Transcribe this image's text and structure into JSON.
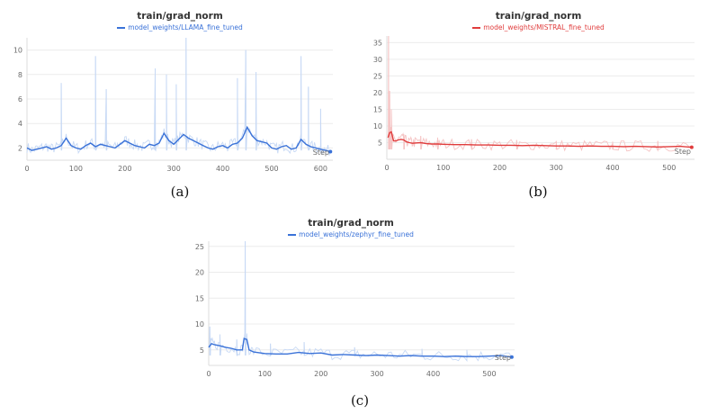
{
  "chart_data": [
    {
      "type": "line",
      "caption": "(a)",
      "title": "train/grad_norm",
      "xlabel": "Step",
      "ylabel": "",
      "xlim": [
        0,
        625
      ],
      "ylim": [
        1,
        11
      ],
      "x_ticks": [
        0,
        100,
        200,
        300,
        400,
        500,
        600
      ],
      "y_ticks": [
        2,
        4,
        6,
        8,
        10
      ],
      "grid": true,
      "legend_position": "top-center",
      "raw_color": "#c7d9f5",
      "color": "#3a72d8",
      "series": [
        {
          "name": "model_weights/LLAMA_fine_tuned",
          "x": [
            0,
            10,
            20,
            30,
            40,
            50,
            60,
            70,
            80,
            90,
            100,
            110,
            120,
            130,
            140,
            150,
            160,
            170,
            180,
            190,
            200,
            210,
            220,
            230,
            240,
            250,
            260,
            270,
            280,
            290,
            300,
            310,
            320,
            330,
            340,
            350,
            360,
            370,
            380,
            390,
            400,
            410,
            420,
            430,
            440,
            450,
            460,
            470,
            480,
            490,
            500,
            510,
            520,
            530,
            540,
            550,
            560,
            570,
            580,
            590,
            600,
            610,
            620
          ],
          "values": [
            2.0,
            1.8,
            1.9,
            2.0,
            2.1,
            1.9,
            2.0,
            2.2,
            2.8,
            2.2,
            2.0,
            1.9,
            2.2,
            2.4,
            2.1,
            2.3,
            2.2,
            2.1,
            2.0,
            2.3,
            2.6,
            2.4,
            2.2,
            2.1,
            2.0,
            2.3,
            2.2,
            2.4,
            3.2,
            2.6,
            2.3,
            2.7,
            3.1,
            2.8,
            2.6,
            2.4,
            2.2,
            2.0,
            1.9,
            2.1,
            2.2,
            2.0,
            2.3,
            2.4,
            2.8,
            3.7,
            3.0,
            2.6,
            2.5,
            2.4,
            2.0,
            1.9,
            2.1,
            2.2,
            1.9,
            2.0,
            2.7,
            2.3,
            2.1,
            2.0,
            1.9,
            1.8,
            1.7
          ],
          "raw_spikes": [
            {
              "x": 70,
              "y": 7.3
            },
            {
              "x": 140,
              "y": 9.5
            },
            {
              "x": 162,
              "y": 6.8
            },
            {
              "x": 262,
              "y": 8.5
            },
            {
              "x": 285,
              "y": 8.0
            },
            {
              "x": 305,
              "y": 7.2
            },
            {
              "x": 325,
              "y": 11.5
            },
            {
              "x": 430,
              "y": 7.7
            },
            {
              "x": 447,
              "y": 10.0
            },
            {
              "x": 468,
              "y": 8.2
            },
            {
              "x": 560,
              "y": 9.5
            },
            {
              "x": 575,
              "y": 7.0
            },
            {
              "x": 600,
              "y": 5.2
            }
          ]
        }
      ]
    },
    {
      "type": "line",
      "caption": "(b)",
      "title": "train/grad_norm",
      "xlabel": "Step",
      "ylabel": "",
      "xlim": [
        0,
        545
      ],
      "ylim": [
        0,
        37
      ],
      "x_ticks": [
        0,
        100,
        200,
        300,
        400,
        500
      ],
      "y_ticks": [
        5,
        10,
        15,
        20,
        25,
        30,
        35
      ],
      "grid": true,
      "legend_position": "top-center",
      "raw_color": "#f5c4c4",
      "color": "#e03c3c",
      "series": [
        {
          "name": "model_weights/MISTRAL_fine_tuned",
          "x": [
            2,
            5,
            8,
            12,
            16,
            20,
            25,
            30,
            35,
            40,
            45,
            50,
            60,
            70,
            80,
            90,
            100,
            120,
            140,
            160,
            180,
            200,
            220,
            240,
            260,
            280,
            300,
            320,
            340,
            360,
            380,
            400,
            420,
            440,
            460,
            480,
            500,
            520,
            540
          ],
          "values": [
            6.5,
            8.0,
            8.2,
            5.5,
            5.5,
            5.8,
            6.0,
            5.8,
            5.2,
            5.0,
            4.8,
            4.9,
            5.0,
            4.7,
            4.6,
            4.6,
            4.5,
            4.4,
            4.4,
            4.3,
            4.3,
            4.2,
            4.2,
            4.1,
            4.2,
            4.1,
            4.0,
            4.0,
            3.9,
            4.0,
            3.9,
            3.9,
            3.8,
            3.9,
            3.8,
            3.7,
            3.8,
            3.9,
            3.6
          ],
          "raw_spikes": [
            {
              "x": 3,
              "y": 37.0
            },
            {
              "x": 5,
              "y": 20.5
            },
            {
              "x": 8,
              "y": 15.0
            },
            {
              "x": 30,
              "y": 7.5
            },
            {
              "x": 60,
              "y": 7.0
            },
            {
              "x": 90,
              "y": 6.5
            },
            {
              "x": 150,
              "y": 6.0
            },
            {
              "x": 230,
              "y": 5.8
            },
            {
              "x": 300,
              "y": 5.5
            },
            {
              "x": 400,
              "y": 5.3
            },
            {
              "x": 480,
              "y": 5.5
            }
          ]
        }
      ]
    },
    {
      "type": "line",
      "caption": "(c)",
      "title": "train/grad_norm",
      "xlabel": "Step",
      "ylabel": "",
      "xlim": [
        0,
        545
      ],
      "ylim": [
        2,
        26
      ],
      "x_ticks": [
        0,
        100,
        200,
        300,
        400,
        500
      ],
      "y_ticks": [
        5,
        10,
        15,
        20,
        25
      ],
      "grid": true,
      "legend_position": "top-center",
      "raw_color": "#c7d9f5",
      "color": "#3a72d8",
      "series": [
        {
          "name": "model_weights/zephyr_fine_tuned",
          "x": [
            0,
            5,
            10,
            20,
            30,
            40,
            50,
            60,
            63,
            68,
            72,
            80,
            100,
            120,
            140,
            160,
            180,
            200,
            220,
            240,
            260,
            280,
            300,
            320,
            340,
            360,
            380,
            400,
            420,
            440,
            460,
            480,
            500,
            520,
            540
          ],
          "values": [
            5.5,
            6.2,
            6.0,
            5.8,
            5.5,
            5.3,
            5.0,
            5.0,
            7.2,
            7.0,
            5.0,
            4.6,
            4.3,
            4.2,
            4.2,
            4.5,
            4.3,
            4.4,
            4.0,
            4.1,
            4.0,
            3.9,
            4.0,
            3.9,
            3.8,
            3.9,
            3.8,
            3.8,
            3.7,
            3.8,
            3.7,
            3.7,
            3.8,
            3.9,
            3.6
          ],
          "raw_spikes": [
            {
              "x": 65,
              "y": 26.0
            },
            {
              "x": 2,
              "y": 9.5
            },
            {
              "x": 20,
              "y": 8.0
            },
            {
              "x": 50,
              "y": 7.0
            },
            {
              "x": 110,
              "y": 6.2
            },
            {
              "x": 170,
              "y": 6.5
            },
            {
              "x": 260,
              "y": 5.5
            },
            {
              "x": 380,
              "y": 5.2
            },
            {
              "x": 460,
              "y": 5.0
            }
          ]
        }
      ]
    }
  ]
}
